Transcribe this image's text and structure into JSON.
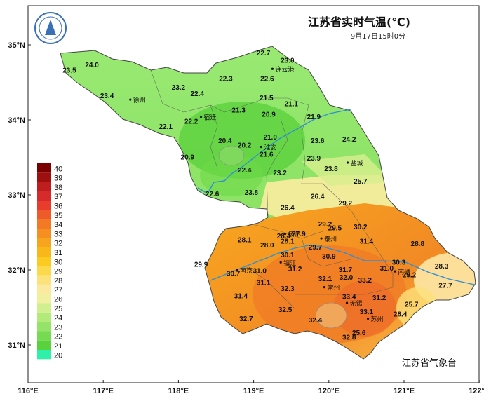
{
  "title": "江苏省实时气温(℃)",
  "timestamp": "9月17日15时0分",
  "credit": "江苏省气象台",
  "x_ticks": [
    "116°E",
    "117°E",
    "118°E",
    "119°E",
    "120°E",
    "121°E",
    "122°E"
  ],
  "y_ticks": [
    "35°N",
    "34°N",
    "33°N",
    "32°N",
    "31°N"
  ],
  "legend": {
    "levels": [
      "40",
      "39",
      "38",
      "37",
      "36",
      "35",
      "34",
      "33",
      "32",
      "31",
      "30",
      "29",
      "28",
      "27",
      "26",
      "25",
      "24",
      "23",
      "22",
      "21",
      "20"
    ],
    "colors": [
      "#7a0000",
      "#9e0f0f",
      "#bf1e1e",
      "#d62b2b",
      "#e83c2c",
      "#ee5a2a",
      "#f27a26",
      "#f58f22",
      "#f7a51f",
      "#f9b81a",
      "#fbcb22",
      "#fcd94a",
      "#fde17a",
      "#fbe9a0",
      "#f0f0a0",
      "#d2ef8f",
      "#b3eb7a",
      "#95e369",
      "#76da52",
      "#5ad23e",
      "#2ef0a8"
    ]
  },
  "cities": [
    {
      "name": "徐州",
      "lon": 117.36,
      "lat": 34.27
    },
    {
      "name": "宿迁",
      "lon": 118.3,
      "lat": 34.04
    },
    {
      "name": "连云港",
      "lon": 119.25,
      "lat": 34.68
    },
    {
      "name": "淮安",
      "lon": 119.1,
      "lat": 33.64
    },
    {
      "name": "盐城",
      "lon": 120.25,
      "lat": 33.43
    },
    {
      "name": "扬州",
      "lon": 119.42,
      "lat": 32.48
    },
    {
      "name": "泰州",
      "lon": 119.9,
      "lat": 32.42
    },
    {
      "name": "南京",
      "lon": 118.78,
      "lat": 32.0
    },
    {
      "name": "镇江",
      "lon": 119.36,
      "lat": 32.1
    },
    {
      "name": "常州",
      "lon": 119.94,
      "lat": 31.77
    },
    {
      "name": "南通",
      "lon": 120.88,
      "lat": 31.98
    },
    {
      "name": "无锡",
      "lon": 120.24,
      "lat": 31.56
    },
    {
      "name": "苏州",
      "lon": 120.52,
      "lat": 31.35
    }
  ],
  "stations": [
    {
      "v": "23.5",
      "lon": 116.55,
      "lat": 34.63
    },
    {
      "v": "24.0",
      "lon": 116.85,
      "lat": 34.7
    },
    {
      "v": "22.7",
      "lon": 119.13,
      "lat": 34.86
    },
    {
      "v": "23.0",
      "lon": 119.45,
      "lat": 34.76
    },
    {
      "v": "22.3",
      "lon": 118.63,
      "lat": 34.52
    },
    {
      "v": "22.6",
      "lon": 119.18,
      "lat": 34.52
    },
    {
      "v": "23.2",
      "lon": 118.0,
      "lat": 34.4
    },
    {
      "v": "22.4",
      "lon": 118.25,
      "lat": 34.32
    },
    {
      "v": "23.4",
      "lon": 117.05,
      "lat": 34.29
    },
    {
      "v": "21.5",
      "lon": 119.17,
      "lat": 34.26
    },
    {
      "v": "21.1",
      "lon": 119.5,
      "lat": 34.18
    },
    {
      "v": "21.3",
      "lon": 118.8,
      "lat": 34.1
    },
    {
      "v": "20.9",
      "lon": 119.2,
      "lat": 34.04
    },
    {
      "v": "21.9",
      "lon": 119.8,
      "lat": 34.01
    },
    {
      "v": "22.2",
      "lon": 118.17,
      "lat": 33.95
    },
    {
      "v": "22.1",
      "lon": 117.83,
      "lat": 33.88
    },
    {
      "v": "21.0",
      "lon": 119.22,
      "lat": 33.74
    },
    {
      "v": "20.4",
      "lon": 118.62,
      "lat": 33.69
    },
    {
      "v": "20.2",
      "lon": 118.88,
      "lat": 33.63
    },
    {
      "v": "23.6",
      "lon": 119.85,
      "lat": 33.69
    },
    {
      "v": "24.2",
      "lon": 120.27,
      "lat": 33.71
    },
    {
      "v": "21.6",
      "lon": 119.17,
      "lat": 33.51
    },
    {
      "v": "20.9",
      "lon": 118.12,
      "lat": 33.47
    },
    {
      "v": "23.9",
      "lon": 119.8,
      "lat": 33.46
    },
    {
      "v": "22.4",
      "lon": 118.88,
      "lat": 33.3
    },
    {
      "v": "23.2",
      "lon": 119.35,
      "lat": 33.26
    },
    {
      "v": "23.8",
      "lon": 120.03,
      "lat": 33.32
    },
    {
      "v": "25.7",
      "lon": 120.42,
      "lat": 33.15
    },
    {
      "v": "22.6",
      "lon": 118.45,
      "lat": 32.98
    },
    {
      "v": "23.8",
      "lon": 118.97,
      "lat": 33.0
    },
    {
      "v": "26.4",
      "lon": 119.85,
      "lat": 32.95
    },
    {
      "v": "29.2",
      "lon": 120.22,
      "lat": 32.86
    },
    {
      "v": "26.4",
      "lon": 119.45,
      "lat": 32.8
    },
    {
      "v": "29.2",
      "lon": 119.95,
      "lat": 32.58
    },
    {
      "v": "29.5",
      "lon": 120.08,
      "lat": 32.53
    },
    {
      "v": "30.2",
      "lon": 120.42,
      "lat": 32.54
    },
    {
      "v": "28.1",
      "lon": 118.88,
      "lat": 32.37
    },
    {
      "v": "28.4",
      "lon": 119.4,
      "lat": 32.42
    },
    {
      "v": "27.9",
      "lon": 119.6,
      "lat": 32.45
    },
    {
      "v": "28.1",
      "lon": 119.45,
      "lat": 32.35
    },
    {
      "v": "28.0",
      "lon": 119.18,
      "lat": 32.3
    },
    {
      "v": "31.4",
      "lon": 120.5,
      "lat": 32.35
    },
    {
      "v": "28.8",
      "lon": 121.18,
      "lat": 32.32
    },
    {
      "v": "29.7",
      "lon": 119.82,
      "lat": 32.27
    },
    {
      "v": "30.1",
      "lon": 119.45,
      "lat": 32.17
    },
    {
      "v": "30.9",
      "lon": 120.0,
      "lat": 32.15
    },
    {
      "v": "30.3",
      "lon": 120.93,
      "lat": 32.07
    },
    {
      "v": "28.3",
      "lon": 121.5,
      "lat": 32.02
    },
    {
      "v": "29.9",
      "lon": 118.3,
      "lat": 32.04
    },
    {
      "v": "30.7",
      "lon": 118.73,
      "lat": 31.92
    },
    {
      "v": "31.0",
      "lon": 119.08,
      "lat": 31.96
    },
    {
      "v": "31.2",
      "lon": 119.55,
      "lat": 31.98
    },
    {
      "v": "31.7",
      "lon": 120.22,
      "lat": 31.97
    },
    {
      "v": "31.0",
      "lon": 120.77,
      "lat": 31.99
    },
    {
      "v": "29.2",
      "lon": 121.07,
      "lat": 31.9
    },
    {
      "v": "32.1",
      "lon": 119.95,
      "lat": 31.85
    },
    {
      "v": "32.0",
      "lon": 120.23,
      "lat": 31.87
    },
    {
      "v": "33.2",
      "lon": 120.48,
      "lat": 31.83
    },
    {
      "v": "27.7",
      "lon": 121.55,
      "lat": 31.76
    },
    {
      "v": "31.1",
      "lon": 119.13,
      "lat": 31.8
    },
    {
      "v": "32.3",
      "lon": 119.45,
      "lat": 31.72
    },
    {
      "v": "31.4",
      "lon": 118.83,
      "lat": 31.62
    },
    {
      "v": "33.4",
      "lon": 120.27,
      "lat": 31.61
    },
    {
      "v": "31.2",
      "lon": 120.67,
      "lat": 31.6
    },
    {
      "v": "25.7",
      "lon": 121.1,
      "lat": 31.51
    },
    {
      "v": "32.5",
      "lon": 119.42,
      "lat": 31.44
    },
    {
      "v": "33.1",
      "lon": 120.5,
      "lat": 31.41
    },
    {
      "v": "28.4",
      "lon": 120.95,
      "lat": 31.38
    },
    {
      "v": "32.7",
      "lon": 118.9,
      "lat": 31.32
    },
    {
      "v": "32.4",
      "lon": 119.82,
      "lat": 31.3
    },
    {
      "v": "25.6",
      "lon": 120.4,
      "lat": 31.13
    },
    {
      "v": "32.8",
      "lon": 120.27,
      "lat": 31.07
    }
  ]
}
